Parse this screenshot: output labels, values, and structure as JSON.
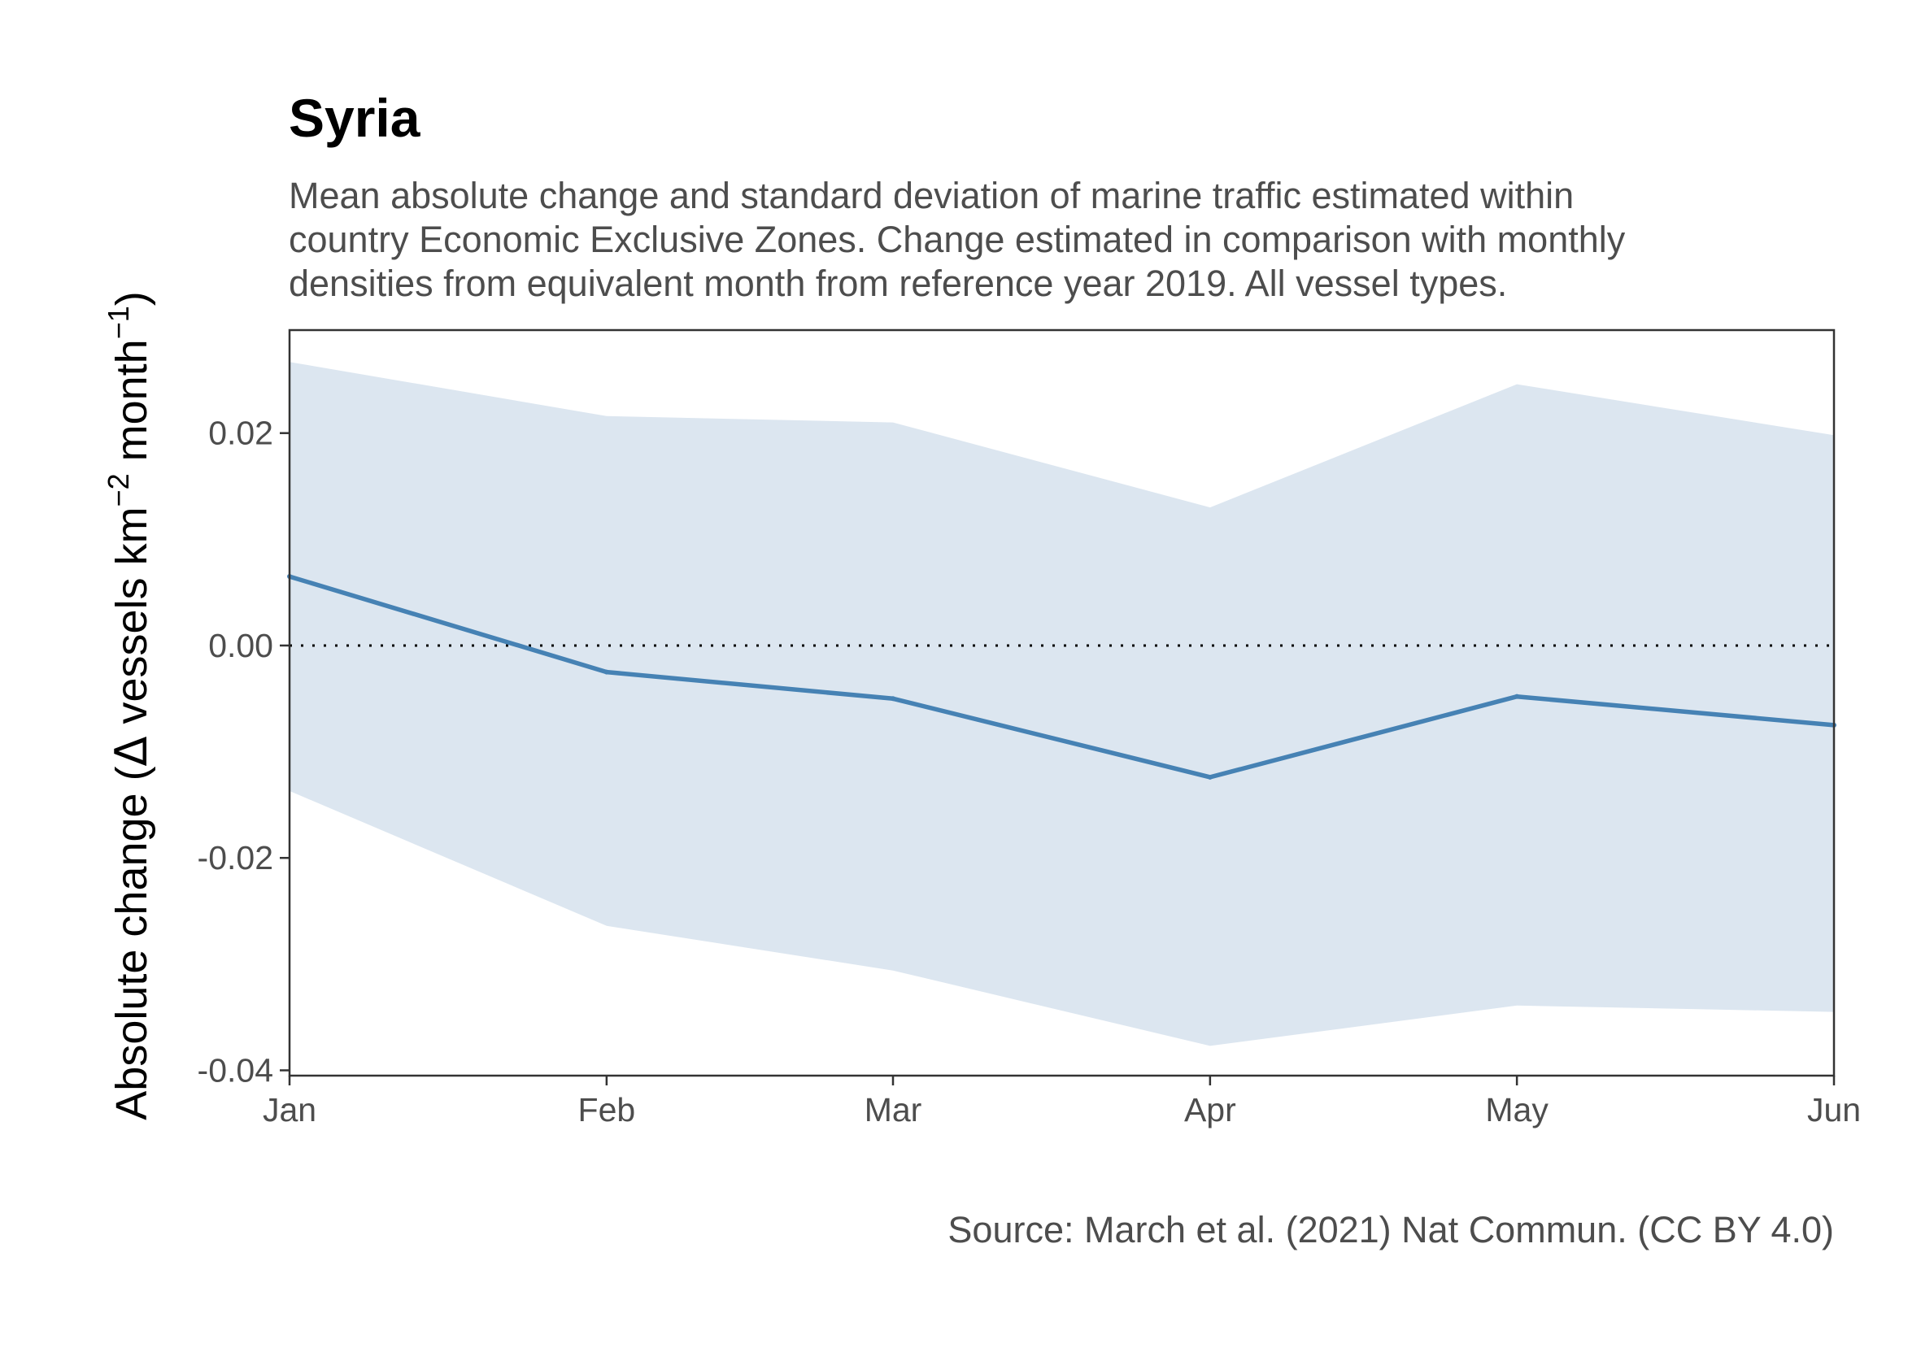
{
  "chart_data": {
    "type": "area",
    "title": "Syria",
    "subtitle": [
      "Mean absolute change and standard deviation of marine traffic estimated within",
      "country Economic Exclusive Zones. Change estimated in comparison with monthly",
      "densities from equivalent month from reference year 2019. All vessel types."
    ],
    "ylabel": {
      "prefix": "Absolute change (",
      "delta": "Δ",
      "text1": " vessels km",
      "sup1": "−2",
      "text2": " month",
      "sup2": "−1",
      "suffix": ")"
    },
    "xlabel": "",
    "caption": "Source: March et al. (2021) Nat Commun. (CC BY 4.0)",
    "categories": [
      "Jan",
      "Feb",
      "Mar",
      "Apr",
      "May",
      "Jun"
    ],
    "x_days": [
      1,
      32,
      60,
      91,
      121,
      152
    ],
    "series": [
      {
        "values": [
          0.0065,
          -0.0025,
          -0.005,
          -0.0124,
          -0.0048,
          -0.0075
        ]
      }
    ],
    "band": {
      "upper": [
        0.0267,
        0.0216,
        0.021,
        0.013,
        0.0246,
        0.0198
      ],
      "lower": [
        -0.0137,
        -0.0264,
        -0.0306,
        -0.0377,
        -0.0339,
        -0.0345
      ]
    },
    "yticks": [
      -0.04,
      -0.02,
      0.0,
      0.02
    ],
    "ytick_labels": [
      "-0.04",
      "-0.02",
      "0.00",
      "0.02"
    ],
    "ylim": [
      -0.0405,
      0.0297
    ],
    "reference_line": 0,
    "grid": false,
    "colors": {
      "line": "#4682b4",
      "band": "#dce6f0",
      "axis": "#333333",
      "reference": "#000000"
    }
  }
}
